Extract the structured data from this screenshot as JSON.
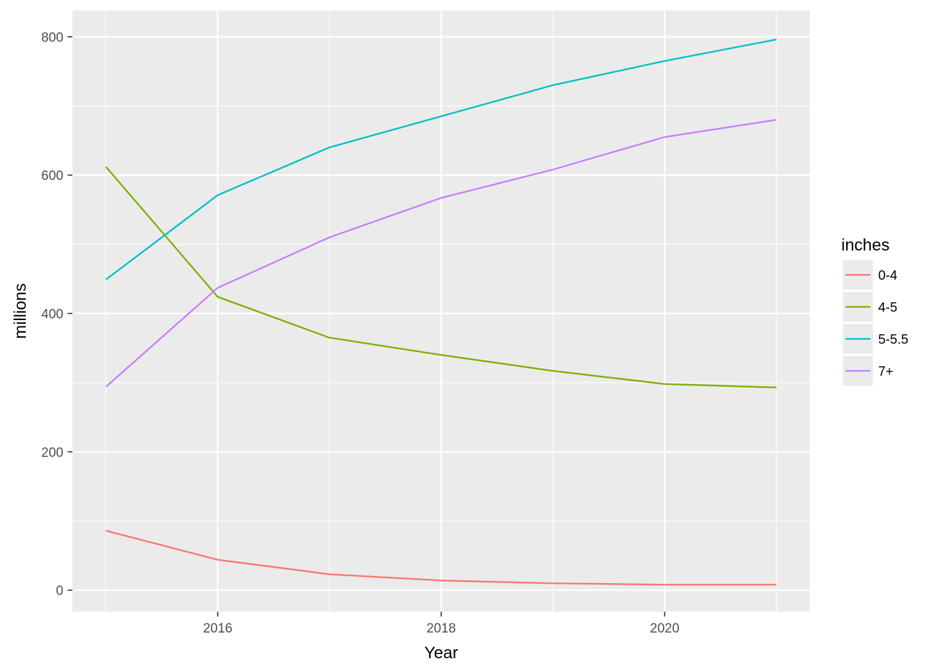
{
  "chart_data": {
    "type": "line",
    "xlabel": "Year",
    "ylabel": "millions",
    "xlim": [
      2014.7,
      2021.3
    ],
    "ylim": [
      -31,
      838
    ],
    "x_ticks": [
      2016,
      2018,
      2020
    ],
    "x_minor_ticks": [
      2015,
      2017,
      2019,
      2021
    ],
    "y_ticks": [
      0,
      200,
      400,
      600,
      800
    ],
    "y_minor_ticks": [
      100,
      300,
      500,
      700
    ],
    "x_tick_labels": [
      "2016",
      "2018",
      "2020"
    ],
    "y_tick_labels": [
      "0",
      "200",
      "400",
      "600",
      "800"
    ],
    "grid": true,
    "legend": {
      "title": "inches",
      "placement": "right"
    },
    "x": [
      2015,
      2016,
      2017,
      2018,
      2019,
      2020,
      2021
    ],
    "series": [
      {
        "name": "0-4",
        "color": "#F8766D",
        "values": [
          86,
          44,
          23,
          14,
          10,
          8,
          8
        ]
      },
      {
        "name": "4-5",
        "color": "#7CAE00",
        "values": [
          612,
          424,
          365,
          340,
          317,
          298,
          293
        ]
      },
      {
        "name": "5-5.5",
        "color": "#00BFC4",
        "values": [
          449,
          571,
          640,
          685,
          730,
          765,
          796
        ]
      },
      {
        "name": "7+",
        "color": "#C77CFF",
        "values": [
          294,
          437,
          510,
          567,
          608,
          655,
          680
        ]
      }
    ],
    "colors": {
      "panel": "#EBEBEB",
      "grid": "#FFFFFF",
      "background": "#FFFFFF"
    }
  }
}
